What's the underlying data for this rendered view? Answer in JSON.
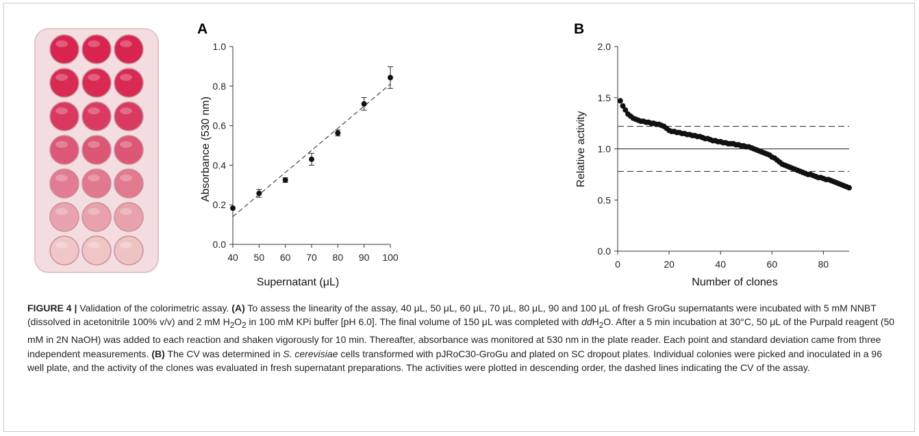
{
  "figure": {
    "photo_rows": [
      [
        "#d8244f",
        "#d8244f",
        "#d8244f"
      ],
      [
        "#d92a54",
        "#d92a54",
        "#d92a54"
      ],
      [
        "#d9385f",
        "#da3a61",
        "#d83a60"
      ],
      [
        "#dd5878",
        "#dc5676",
        "#dc5676"
      ],
      [
        "#e27b94",
        "#e0788f",
        "#e1798f"
      ],
      [
        "#e9a3b0",
        "#e8a1ad",
        "#e8a2ae"
      ],
      [
        "#f0c6c9",
        "#efc5c6",
        "#eec3c4"
      ]
    ],
    "photo_colors": {
      "tray": "#f4dde0",
      "tray_edge": "#e3c4c8"
    }
  },
  "chart_data": [
    {
      "type": "scatter",
      "panel": "A",
      "xlabel": "Supernatant (μL)",
      "ylabel": "Absorbance (530 nm)",
      "xlim": [
        40,
        100
      ],
      "ylim": [
        0.0,
        1.0
      ],
      "xticks": [
        "40",
        "50",
        "60",
        "70",
        "80",
        "90",
        "100"
      ],
      "yticks": [
        "0.0",
        "0.2",
        "0.4",
        "0.6",
        "0.8",
        "1.0"
      ],
      "x": [
        40,
        50,
        60,
        70,
        80,
        90,
        100
      ],
      "y": [
        0.183,
        0.258,
        0.325,
        0.43,
        0.563,
        0.71,
        0.843
      ],
      "error": [
        0.0,
        0.02,
        0.012,
        0.03,
        0.015,
        0.032,
        0.055
      ],
      "fit_line": {
        "x": [
          40,
          100
        ],
        "y": [
          0.14,
          0.81
        ],
        "style": "dashed"
      },
      "grid": false
    },
    {
      "type": "scatter",
      "panel": "B",
      "xlabel": "Number of clones",
      "ylabel": "Relative activity",
      "xlim": [
        0,
        90
      ],
      "ylim": [
        0.0,
        2.0
      ],
      "xticks": [
        "0",
        "20",
        "40",
        "60",
        "80"
      ],
      "yticks": [
        "0.0",
        "0.5",
        "1.0",
        "1.5",
        "2.0"
      ],
      "x_range": [
        1,
        90
      ],
      "y": [
        1.47,
        1.42,
        1.38,
        1.34,
        1.32,
        1.3,
        1.29,
        1.28,
        1.27,
        1.27,
        1.26,
        1.26,
        1.25,
        1.25,
        1.24,
        1.24,
        1.23,
        1.22,
        1.2,
        1.18,
        1.17,
        1.17,
        1.16,
        1.16,
        1.15,
        1.15,
        1.14,
        1.14,
        1.13,
        1.13,
        1.12,
        1.12,
        1.11,
        1.1,
        1.1,
        1.09,
        1.08,
        1.08,
        1.07,
        1.07,
        1.06,
        1.06,
        1.05,
        1.05,
        1.05,
        1.04,
        1.04,
        1.03,
        1.03,
        1.02,
        1.02,
        1.01,
        1.0,
        0.99,
        0.98,
        0.97,
        0.96,
        0.95,
        0.94,
        0.92,
        0.91,
        0.89,
        0.87,
        0.85,
        0.84,
        0.83,
        0.82,
        0.81,
        0.8,
        0.79,
        0.78,
        0.77,
        0.76,
        0.75,
        0.75,
        0.74,
        0.73,
        0.72,
        0.72,
        0.71,
        0.7,
        0.7,
        0.69,
        0.68,
        0.67,
        0.66,
        0.65,
        0.64,
        0.63,
        0.62
      ],
      "reference_lines": [
        {
          "y": 1.0,
          "style": "solid"
        },
        {
          "y": 1.22,
          "style": "dashed"
        },
        {
          "y": 0.78,
          "style": "dashed"
        }
      ],
      "grid": false
    }
  ],
  "panel_labels": {
    "a": "A",
    "b": "B"
  },
  "caption": {
    "label": "FIGURE 4 |",
    "p1": " Validation of the colorimetric assay. ",
    "a_label": "(A)",
    "p2": " To assess the linearity of the assay, 40 μL, 50 μL, 60 μL, 70 μL, 80 μL, 90 and 100 μL of fresh GroGu supernatants were incubated with 5 mM NNBT (dissolved in acetonitrile 100% v/v) and 2 mM H",
    "sub1": "2",
    "p3": "O",
    "sub2": "2",
    "p4": " in 100 mM KPi buffer [pH 6.0]. The final volume of 150 μL was completed with ",
    "dd": "dd",
    "p5": "H",
    "sub3": "2",
    "p6": "O. After a 5 min incubation at 30°C, 50 μL of the Purpald reagent (50 mM in 2N NaOH) was added to each reaction and shaken vigorously for 10 min. Thereafter, absorbance was monitored at 530 nm in the plate reader. Each point and standard deviation came from three independent measurements. ",
    "b_label": "(B)",
    "p7": " The CV was determined in ",
    "species": "S. cerevisiae",
    "p8": " cells transformed with pJRoC30-GroGu and plated on SC dropout plates. Individual colonies were picked and inoculated in a 96 well plate, and the activity of the clones was evaluated in fresh supernatant preparations. The activities were plotted in descending order, the dashed lines indicating the CV of the assay."
  }
}
